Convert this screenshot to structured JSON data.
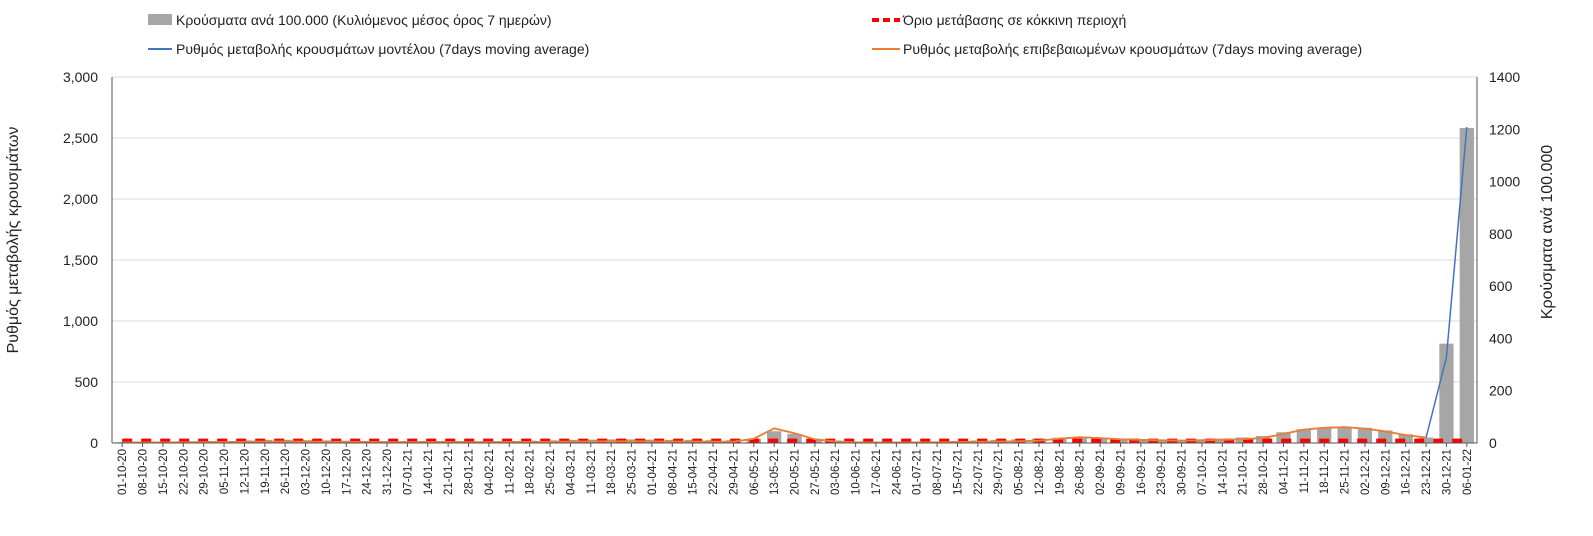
{
  "chart_data": {
    "type": "line",
    "legend": {
      "bars": "Κρούσματα ανά 100.000 (Κυλιόμενος μέσος όρος 7 ημερών)",
      "threshold": "Όριο μετάβασης σε κόκκινη περιοχή",
      "model": "Ρυθμός μεταβολής κρουσμάτων μοντέλου (7days moving average)",
      "confirmed": "Ρυθμός μεταβολής επιβεβαιωμένων κρουσμάτων (7days moving average)"
    },
    "legend_placement": "top",
    "ylabel_left": "Ρυθμός μεταβολής κρουσμάτων",
    "ylabel_right": "Κρούσματα ανά 100.000",
    "ylim_left": [
      0,
      3000
    ],
    "ylim_right": [
      0,
      1400
    ],
    "yticks_left": [
      "0",
      "500",
      "1,000",
      "1,500",
      "2,000",
      "2,500",
      "3,000"
    ],
    "yticks_right": [
      "0",
      "200",
      "400",
      "600",
      "800",
      "1000",
      "1200",
      "1400"
    ],
    "grid": true,
    "colors": {
      "bars": "#a6a6a6",
      "threshold": "#ff0000",
      "model": "#4472c4",
      "confirmed": "#ed7d31"
    },
    "x": [
      "01-10-20",
      "08-10-20",
      "15-10-20",
      "22-10-20",
      "29-10-20",
      "05-11-20",
      "12-11-20",
      "19-11-20",
      "26-11-20",
      "03-12-20",
      "10-12-20",
      "17-12-20",
      "24-12-20",
      "31-12-20",
      "07-01-21",
      "14-01-21",
      "21-01-21",
      "28-01-21",
      "04-02-21",
      "11-02-21",
      "18-02-21",
      "25-02-21",
      "04-03-21",
      "11-03-21",
      "18-03-21",
      "25-03-21",
      "01-04-21",
      "08-04-21",
      "15-04-21",
      "22-04-21",
      "29-04-21",
      "06-05-21",
      "13-05-21",
      "20-05-21",
      "27-05-21",
      "03-06-21",
      "10-06-21",
      "17-06-21",
      "24-06-21",
      "01-07-21",
      "08-07-21",
      "15-07-21",
      "22-07-21",
      "29-07-21",
      "05-08-21",
      "12-08-21",
      "19-08-21",
      "26-08-21",
      "02-09-21",
      "09-09-21",
      "16-09-21",
      "23-09-21",
      "30-09-21",
      "07-10-21",
      "14-10-21",
      "21-10-21",
      "28-10-21",
      "04-11-21",
      "11-11-21",
      "18-11-21",
      "25-11-21",
      "02-12-21",
      "09-12-21",
      "16-12-21",
      "23-12-21",
      "30-12-21",
      "06-01-22"
    ],
    "series": [
      {
        "name": "Κρούσματα ανά 100.000 (Κυλιόμενος μέσος όρος 7 ημερών)",
        "axis": "right",
        "type": "bar",
        "values": [
          3,
          4,
          5,
          6,
          7,
          8,
          10,
          12,
          12,
          11,
          10,
          9,
          8,
          7,
          7,
          8,
          8,
          7,
          7,
          8,
          9,
          10,
          12,
          13,
          14,
          14,
          13,
          12,
          12,
          11,
          11,
          16,
          45,
          35,
          16,
          9,
          6,
          5,
          4,
          5,
          6,
          8,
          10,
          12,
          14,
          17,
          20,
          22,
          19,
          16,
          14,
          13,
          12,
          14,
          17,
          21,
          27,
          41,
          53,
          58,
          62,
          58,
          48,
          33,
          21,
          380,
          1205
        ]
      },
      {
        "name": "Όριο μετάβασης σε κόκκινη περιοχή",
        "axis": "left",
        "type": "dashed-line",
        "values": [
          20,
          20,
          20,
          20,
          20,
          20,
          20,
          20,
          20,
          20,
          20,
          20,
          20,
          20,
          20,
          20,
          20,
          20,
          20,
          20,
          20,
          20,
          20,
          20,
          20,
          20,
          20,
          20,
          20,
          20,
          20,
          20,
          20,
          20,
          20,
          20,
          20,
          20,
          20,
          20,
          20,
          20,
          20,
          20,
          20,
          20,
          20,
          20,
          20,
          20,
          20,
          20,
          20,
          20,
          20,
          20,
          20,
          20,
          20,
          20,
          20,
          20,
          20,
          20,
          20,
          20,
          20
        ]
      },
      {
        "name": "Ρυθμός μεταβολής κρουσμάτων μοντέλου (7days moving average)",
        "axis": "left",
        "type": "line",
        "values": [
          3,
          4,
          5,
          6,
          7,
          8,
          10,
          12,
          12,
          11,
          10,
          9,
          8,
          7,
          7,
          8,
          8,
          7,
          7,
          8,
          9,
          10,
          12,
          13,
          14,
          14,
          13,
          12,
          12,
          11,
          11,
          35,
          120,
          80,
          30,
          12,
          6,
          5,
          4,
          5,
          6,
          8,
          10,
          12,
          14,
          20,
          35,
          48,
          40,
          30,
          25,
          22,
          20,
          22,
          26,
          32,
          40,
          75,
          110,
          125,
          130,
          118,
          95,
          65,
          45,
          700,
          2590
        ]
      },
      {
        "name": "Ρυθμός μεταβολής επιβεβαιωμένων κρουσμάτων (7days moving average)",
        "axis": "left",
        "type": "line",
        "values": [
          3,
          4,
          5,
          6,
          7,
          8,
          10,
          12,
          12,
          11,
          10,
          9,
          8,
          7,
          7,
          8,
          8,
          7,
          7,
          8,
          9,
          10,
          12,
          13,
          14,
          14,
          13,
          12,
          12,
          11,
          11,
          35,
          120,
          80,
          30,
          12,
          6,
          5,
          4,
          5,
          6,
          8,
          10,
          12,
          14,
          20,
          35,
          48,
          40,
          30,
          25,
          22,
          20,
          22,
          26,
          32,
          40,
          75,
          110,
          125,
          130,
          118,
          95,
          65,
          45,
          null,
          null
        ]
      }
    ]
  }
}
